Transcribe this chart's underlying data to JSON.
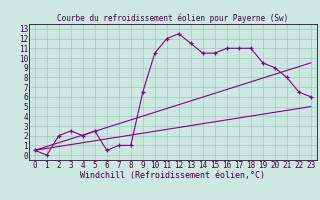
{
  "title": "Courbe du refroidissement éolien pour Payerne (Sw)",
  "xlabel": "Windchill (Refroidissement éolien,°C)",
  "xlim": [
    -0.5,
    23.5
  ],
  "ylim": [
    -0.5,
    13.5
  ],
  "xticks": [
    0,
    1,
    2,
    3,
    4,
    5,
    6,
    7,
    8,
    9,
    10,
    11,
    12,
    13,
    14,
    15,
    16,
    17,
    18,
    19,
    20,
    21,
    22,
    23
  ],
  "yticks": [
    0,
    1,
    2,
    3,
    4,
    5,
    6,
    7,
    8,
    9,
    10,
    11,
    12,
    13
  ],
  "bg_color": "#cce8e0",
  "line_color": "#880088",
  "grid_color": "#99ccbb",
  "line1_x": [
    0,
    1,
    2,
    3,
    4,
    5,
    6,
    7,
    8,
    9,
    10,
    11,
    12,
    13,
    14,
    15,
    16,
    17,
    18,
    19,
    20,
    21,
    22,
    23
  ],
  "line1_y": [
    0.5,
    0,
    2,
    2.5,
    2,
    2.5,
    0.5,
    1.0,
    1.0,
    6.5,
    10.5,
    12.0,
    12.5,
    11.5,
    10.5,
    10.5,
    11.0,
    11.0,
    11.0,
    9.5,
    9.0,
    8.0,
    6.5,
    6.0
  ],
  "line2_x": [
    0,
    23
  ],
  "line2_y": [
    0.5,
    5.0
  ],
  "line3_x": [
    0,
    23
  ],
  "line3_y": [
    0.5,
    9.5
  ],
  "tick_fontsize": 5.5,
  "label_fontsize": 6.0,
  "title_fontsize": 5.5
}
